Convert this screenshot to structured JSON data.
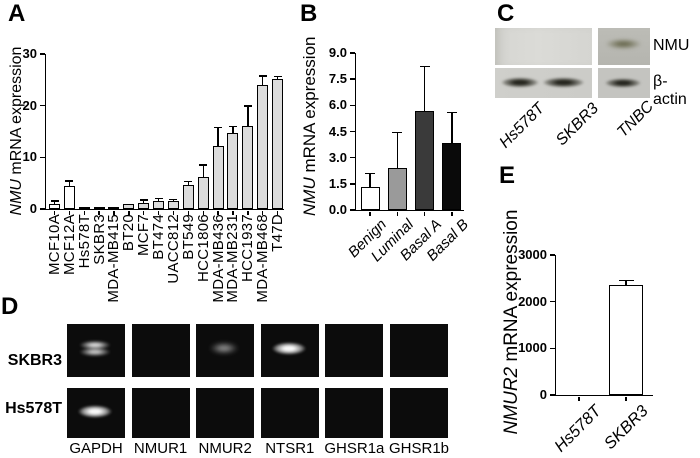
{
  "figure": {
    "panels": {
      "A": {
        "letter": "A",
        "ylabel_gene": "NMU",
        "ylabel_rest": " mRNA expression"
      },
      "B": {
        "letter": "B",
        "ylabel_gene": "NMU",
        "ylabel_rest": " mRNA expression"
      },
      "C": {
        "letter": "C",
        "lanes": [
          "Hs578T",
          "SKBR3",
          "TNBC"
        ],
        "targets": [
          "NMU",
          "β-actin"
        ]
      },
      "D": {
        "letter": "D",
        "row_labels": [
          "SKBR3",
          "Hs578T"
        ],
        "col_labels": [
          "GAPDH",
          "NMUR1",
          "NMUR2",
          "NTSR1",
          "GHSR1a",
          "GHSR1b"
        ],
        "bands": [
          [
            "med",
            "none",
            "faint",
            "bright",
            "none",
            "none"
          ],
          [
            "bright",
            "none",
            "none",
            "none",
            "none",
            "none"
          ]
        ]
      },
      "E": {
        "letter": "E",
        "ylabel_gene": "NMUR2",
        "ylabel_rest": " mRNA expression"
      }
    }
  },
  "chart_data": [
    {
      "type": "bar",
      "panel": "A",
      "title": "",
      "ylabel": "NMU mRNA expression",
      "xlabel": "",
      "categories": [
        "MCF10A",
        "MCF12A",
        "Hs578T",
        "SKBR3",
        "MDA-MB415",
        "BT20",
        "MCF7",
        "BT474",
        "UACC812",
        "BT549",
        "HCC1806",
        "MDA-MB436",
        "MDA-MB231",
        "HCC1937",
        "MDA-MB468",
        "T47D"
      ],
      "values": [
        1.0,
        4.4,
        0.15,
        0.15,
        0.25,
        0.95,
        1.1,
        1.5,
        1.55,
        4.6,
        6.1,
        12.2,
        14.8,
        16.1,
        24.0,
        25.2
      ],
      "errors": [
        0.4,
        0.9,
        0.1,
        0.1,
        0.15,
        0,
        0.5,
        0.35,
        0.2,
        0.6,
        2.3,
        3.4,
        1.0,
        3.7,
        1.6,
        0.3
      ],
      "bar_colors": [
        "#ffffff",
        "#ffffff",
        "#dcdcdc",
        "#dcdcdc",
        "#dcdcdc",
        "#dcdcdc",
        "#dcdcdc",
        "#dcdcdc",
        "#dcdcdc",
        "#dcdcdc",
        "#dcdcdc",
        "#dcdcdc",
        "#dcdcdc",
        "#dcdcdc",
        "#dcdcdc",
        "#dcdcdc"
      ],
      "ylim": [
        0,
        30
      ],
      "ytick_values": [
        0,
        10,
        20,
        30
      ],
      "ytick_labels": [
        "0",
        "10",
        "20",
        "30"
      ],
      "grid": false,
      "legend": false
    },
    {
      "type": "bar",
      "panel": "B",
      "title": "",
      "ylabel": "NMU mRNA expression",
      "xlabel": "",
      "categories": [
        "Benign",
        "Luminal",
        "Basal A",
        "Basal B"
      ],
      "values": [
        1.3,
        2.4,
        5.7,
        3.85
      ],
      "errors": [
        0.75,
        2.0,
        2.5,
        1.7
      ],
      "bar_colors": [
        "#ffffff",
        "#9a9a9a",
        "#3a3a3a",
        "#0a0a0a"
      ],
      "ylim": [
        0,
        9
      ],
      "ytick_values": [
        0,
        1.5,
        3.0,
        4.5,
        6.0,
        7.5,
        9.0
      ],
      "ytick_labels": [
        "0.0",
        "1.5",
        "3.0",
        "4.5",
        "6.0",
        "7.5",
        "9.0"
      ],
      "grid": false,
      "legend": false
    },
    {
      "type": "bar",
      "panel": "E",
      "title": "",
      "ylabel": "NMUR2 mRNA expression",
      "xlabel": "",
      "categories": [
        "Hs578T",
        "SKBR3"
      ],
      "values": [
        0,
        2350
      ],
      "errors": [
        0,
        90
      ],
      "bar_colors": [
        "#ffffff",
        "#ffffff"
      ],
      "ylim": [
        0,
        3000
      ],
      "ytick_values": [
        0,
        1000,
        2000,
        3000
      ],
      "ytick_labels": [
        "0",
        "1000",
        "2000",
        "3000"
      ],
      "grid": false,
      "legend": false
    }
  ],
  "colors": {
    "bar_gray": "#dcdcdc",
    "axis": "#000000",
    "blot_bg_light": "#d8d8d4",
    "blot_bg_dark": "#b9b9b3",
    "gel_bg": "#0c0c0c"
  }
}
